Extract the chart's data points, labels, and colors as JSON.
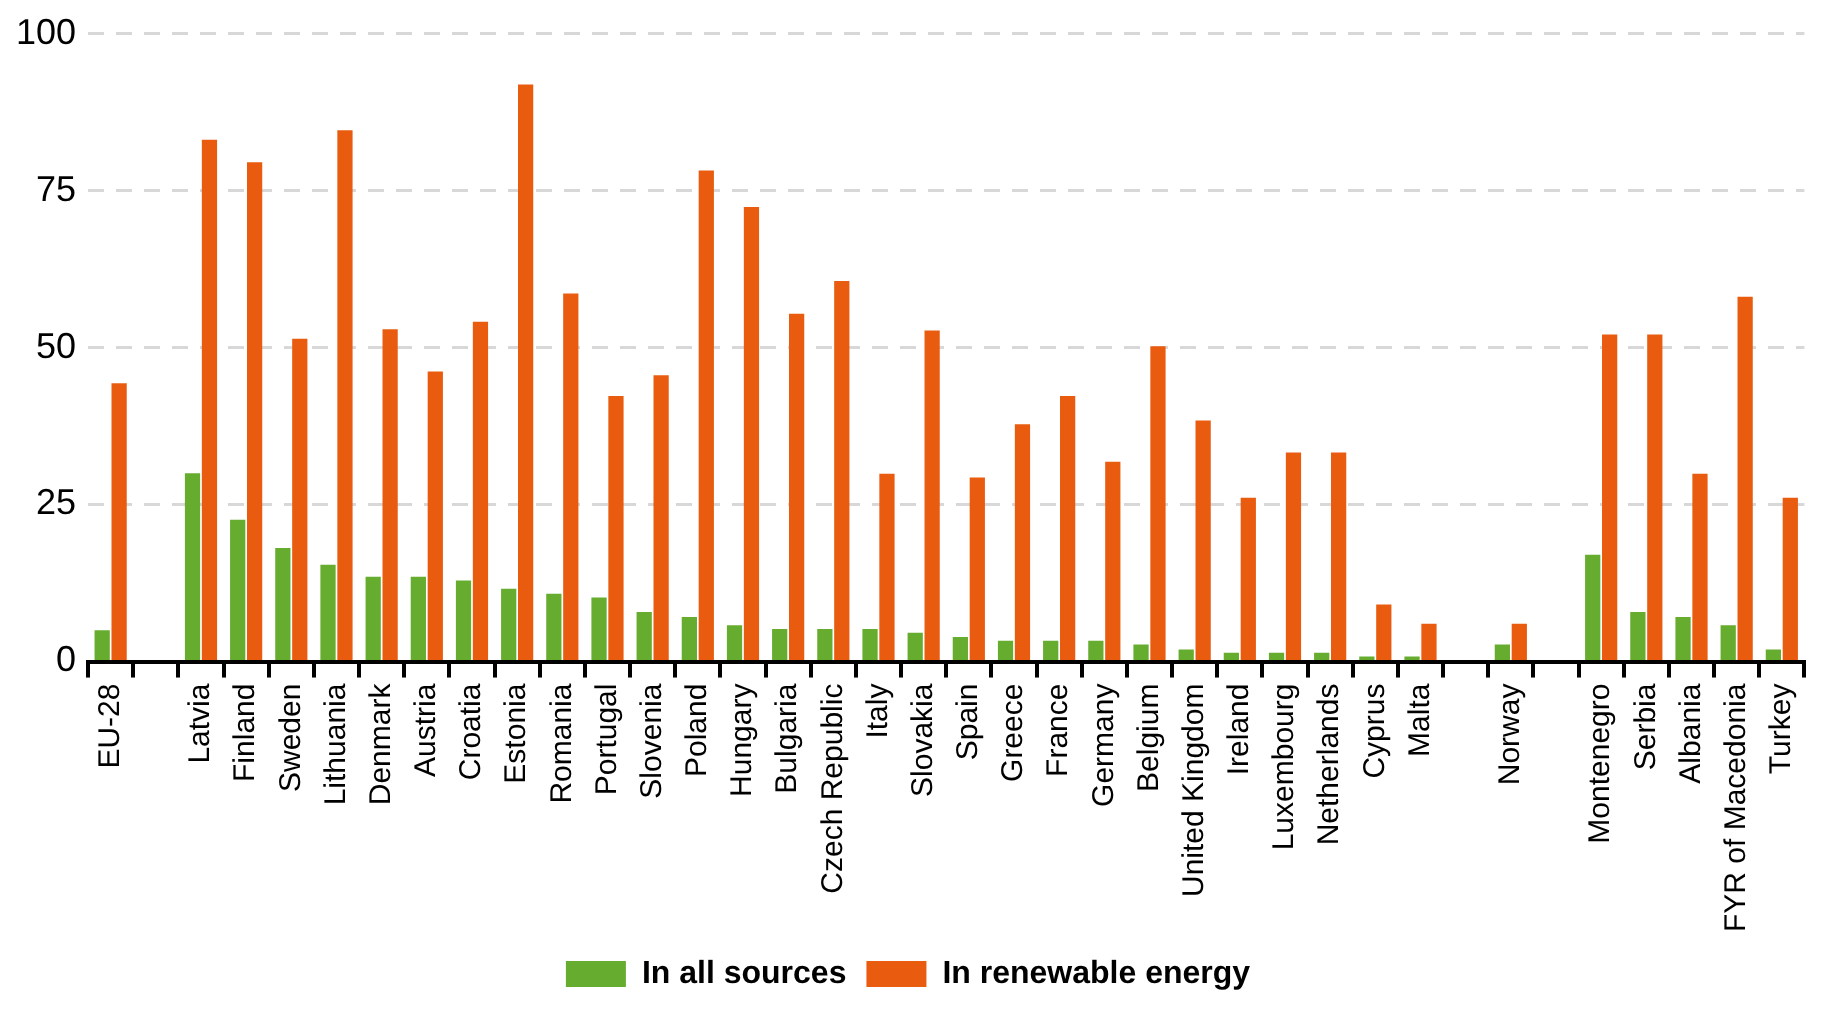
{
  "chart_data": {
    "type": "bar",
    "categories": [
      "EU-28",
      null,
      "Latvia",
      "Finland",
      "Sweden",
      "Lithuania",
      "Denmark",
      "Austria",
      "Croatia",
      "Estonia",
      "Romania",
      "Portugal",
      "Slovenia",
      "Poland",
      "Hungary",
      "Bulgaria",
      "Czech Republic",
      "Italy",
      "Slovakia",
      "Spain",
      "Greece",
      "France",
      "Germany",
      "Belgium",
      "United Kingdom",
      "Ireland",
      "Luxembourg",
      "Netherlands",
      "Cyprus",
      "Malta",
      null,
      "Norway",
      null,
      "Montenegro",
      "Serbia",
      "Albania",
      "FYR of Macedonia",
      "Turkey"
    ],
    "series": [
      {
        "name": "In all sources",
        "color": "#66ad2f",
        "values": [
          5,
          null,
          30,
          22.6,
          18.1,
          15.4,
          13.5,
          13.5,
          12.9,
          11.6,
          10.8,
          10.2,
          7.9,
          7.1,
          5.8,
          5.2,
          5.2,
          5.2,
          4.6,
          3.9,
          3.3,
          3.3,
          3.3,
          2.7,
          1.9,
          1.4,
          1.4,
          1.4,
          0.8,
          0.8,
          null,
          2.7,
          null,
          17,
          7.9,
          7.1,
          5.8,
          1.9
        ]
      },
      {
        "name": "In renewable energy",
        "color": "#e95c0f",
        "values": [
          44.3,
          null,
          83.1,
          79.5,
          51.4,
          84.6,
          52.9,
          46.2,
          54.1,
          91.9,
          58.6,
          42.3,
          45.6,
          78.2,
          72.4,
          55.4,
          60.6,
          29.9,
          52.7,
          29.3,
          37.8,
          42.3,
          31.8,
          50.2,
          38.4,
          26.1,
          33.3,
          33.3,
          9.1,
          6,
          null,
          6,
          null,
          52.1,
          52.1,
          29.9,
          58.1,
          26.1
        ]
      }
    ],
    "ylim": [
      0,
      100
    ],
    "yticks": [
      0,
      25,
      50,
      75,
      100
    ],
    "grid": "y",
    "legend": "bottom"
  }
}
